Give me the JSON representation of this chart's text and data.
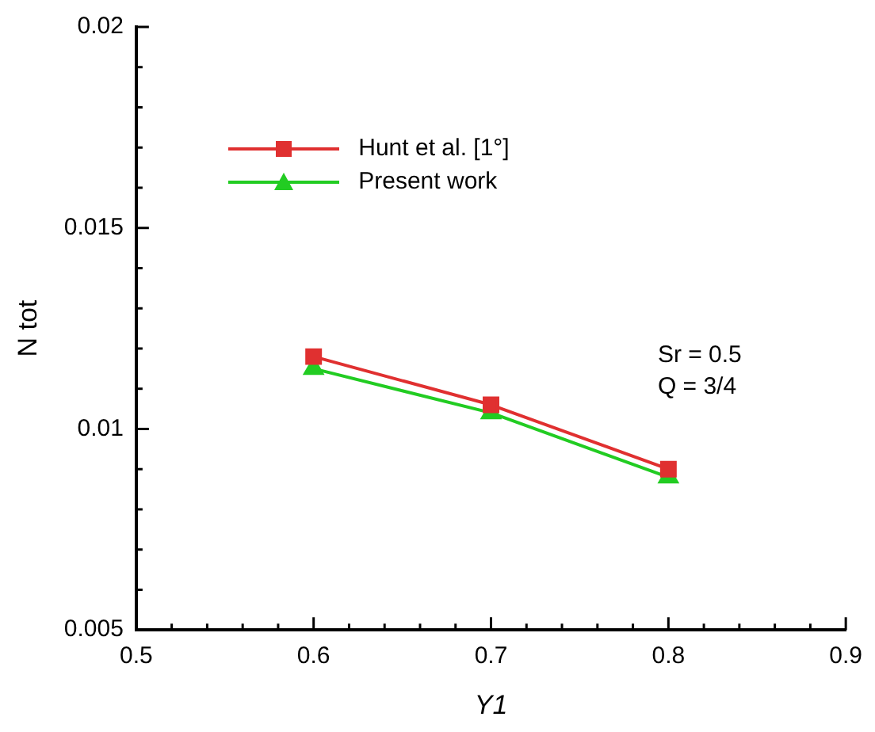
{
  "chart_data": {
    "type": "line",
    "xlabel": "Y1",
    "ylabel": "N tot",
    "x": [
      0.6,
      0.7,
      0.8
    ],
    "series": [
      {
        "name": "Hunt et al. [1°]",
        "color": "#e03030",
        "marker": "square",
        "values": [
          0.0118,
          0.0106,
          0.009
        ]
      },
      {
        "name": "Present work",
        "color": "#22cc22",
        "marker": "triangle",
        "values": [
          0.0115,
          0.0104,
          0.0088
        ]
      }
    ],
    "xlim": [
      0.5,
      0.9
    ],
    "xticks": [
      0.5,
      {
        "value": 0.52,
        "label": null
      },
      {
        "value": 0.54,
        "label": null
      },
      {
        "value": 0.56,
        "label": null
      },
      {
        "value": 0.58,
        "label": null
      },
      0.6,
      {
        "value": 0.62,
        "label": null
      },
      {
        "value": 0.64,
        "label": null
      },
      {
        "value": 0.66,
        "label": null
      },
      {
        "value": 0.68,
        "label": null
      },
      0.7,
      {
        "value": 0.72,
        "label": null
      },
      {
        "value": 0.74,
        "label": null
      },
      {
        "value": 0.76,
        "label": null
      },
      {
        "value": 0.78,
        "label": null
      },
      0.8,
      {
        "value": 0.82,
        "label": null
      },
      {
        "value": 0.84,
        "label": null
      },
      {
        "value": 0.86,
        "label": null
      },
      {
        "value": 0.88,
        "label": null
      },
      0.9
    ],
    "ylim": [
      0.005,
      0.02
    ],
    "yticks": [
      0.005,
      {
        "value": 0.006,
        "label": null
      },
      {
        "value": 0.007,
        "label": null
      },
      {
        "value": 0.008,
        "label": null
      },
      {
        "value": 0.009,
        "label": null
      },
      0.01,
      {
        "value": 0.011,
        "label": null
      },
      {
        "value": 0.012,
        "label": null
      },
      {
        "value": 0.013,
        "label": null
      },
      {
        "value": 0.014,
        "label": null
      },
      0.015,
      {
        "value": 0.016,
        "label": null
      },
      {
        "value": 0.017,
        "label": null
      },
      {
        "value": 0.018,
        "label": null
      },
      {
        "value": 0.019,
        "label": null
      },
      0.02
    ],
    "annotations": [
      "Sr = 0.5",
      "Q = 3/4"
    ],
    "legend": "top left",
    "grid": false,
    "line_style": "solid"
  }
}
